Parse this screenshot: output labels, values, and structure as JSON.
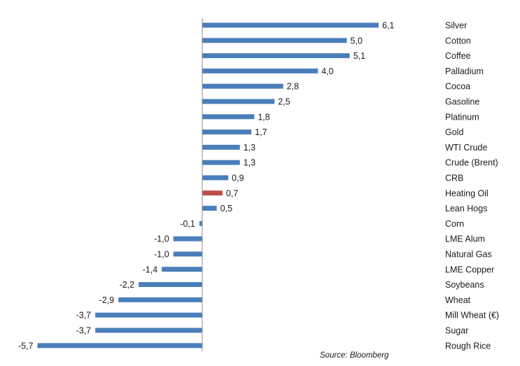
{
  "chart_data": {
    "type": "bar",
    "orientation": "horizontal",
    "categories": [
      "Silver",
      "Cotton",
      "Coffee",
      "Palladium",
      "Cocoa",
      "Gasoline",
      "Platinum",
      "Gold",
      "WTI Crude",
      "Crude (Brent)",
      "CRB",
      "Heating Oil",
      "Lean Hogs",
      "Corn",
      "LME Alum",
      "Natural Gas",
      "LME Copper",
      "Soybeans",
      "Wheat",
      "Mill Wheat (€)",
      "Sugar",
      "Rough Rice"
    ],
    "values": [
      6.1,
      5.0,
      5.1,
      4.0,
      2.8,
      2.5,
      1.8,
      1.7,
      1.3,
      1.3,
      0.9,
      0.7,
      0.5,
      -0.1,
      -1.0,
      -1.0,
      -1.4,
      -2.2,
      -2.9,
      -3.7,
      -3.7,
      -5.7
    ],
    "value_labels": [
      "6,1",
      "5,0",
      "5,1",
      "4,0",
      "2,8",
      "2,5",
      "1,8",
      "1,7",
      "1,3",
      "1,3",
      "0,9",
      "0,7",
      "0,5",
      "-0,1",
      "-1,0",
      "-1,0",
      "-1,4",
      "-2,2",
      "-2,9",
      "-3,7",
      "-3,7",
      "-5,7"
    ],
    "xlim": [
      -5.7,
      6.1
    ],
    "grid": false,
    "legend": "none",
    "colors": {
      "default": "#4a7ebb",
      "highlight": "#be4b48"
    },
    "highlight_category": "Heating Oil",
    "source_note": "Source: Bloomberg"
  }
}
